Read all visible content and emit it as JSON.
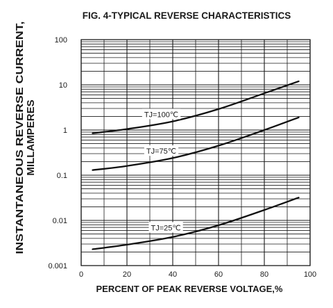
{
  "chart_data": {
    "type": "line",
    "title": "FIG. 4-TYPICAL REVERSE CHARACTERISTICS",
    "xlabel": "PERCENT OF PEAK REVERSE VOLTAGE,%",
    "ylabel_line1": "INSTANTANEOUS REVERSE CURRENT,",
    "ylabel_line2": "MILLAMPERES",
    "xlim": [
      0,
      100
    ],
    "ylim": [
      0.001,
      100
    ],
    "yscale": "log",
    "grid": true,
    "x_ticks": [
      "0",
      "20",
      "40",
      "60",
      "80",
      "100"
    ],
    "y_ticks": [
      "0.001",
      "0.01",
      "0.1",
      "1",
      "10",
      "100"
    ],
    "series": [
      {
        "name": "TJ=100℃",
        "x": [
          5,
          20,
          40,
          60,
          80,
          95
        ],
        "y": [
          0.85,
          1.05,
          1.55,
          2.9,
          6.5,
          12
        ]
      },
      {
        "name": "TJ=75℃",
        "x": [
          5,
          20,
          40,
          60,
          80,
          95
        ],
        "y": [
          0.13,
          0.16,
          0.24,
          0.45,
          1.0,
          1.9
        ]
      },
      {
        "name": "TJ=25℃",
        "x": [
          5,
          20,
          40,
          60,
          80,
          95
        ],
        "y": [
          0.0023,
          0.0029,
          0.0043,
          0.0078,
          0.017,
          0.032
        ]
      }
    ]
  }
}
